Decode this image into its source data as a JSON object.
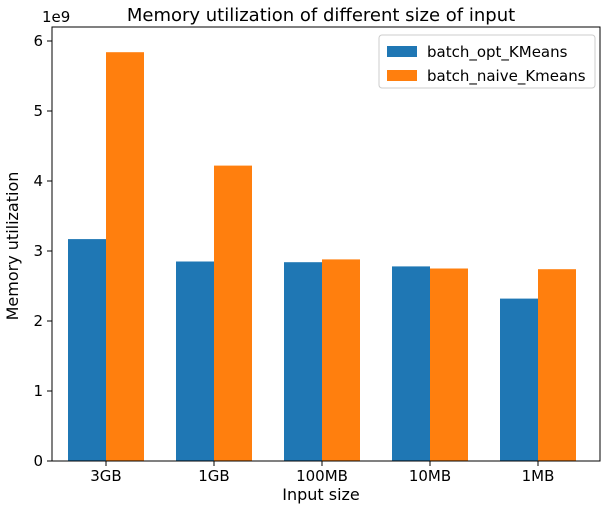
{
  "chart_data": {
    "type": "bar",
    "title": "Memory utilization of different size of input",
    "xlabel": "Input size",
    "ylabel": "Memory utilization",
    "y_multiplier_label": "1e9",
    "y_multiplier": 1000000000,
    "categories": [
      "3GB",
      "1GB",
      "100MB",
      "10MB",
      "1MB"
    ],
    "series": [
      {
        "name": "batch_opt_KMeans",
        "color": "#1f77b4",
        "values": [
          3.17,
          2.85,
          2.84,
          2.78,
          2.32
        ]
      },
      {
        "name": "batch_naive_Kmeans",
        "color": "#ff7f0e",
        "values": [
          5.84,
          4.22,
          2.88,
          2.75,
          2.74
        ]
      }
    ],
    "ylim": [
      0,
      6.2
    ],
    "yticks": [
      0,
      1,
      2,
      3,
      4,
      5,
      6
    ],
    "grid": false,
    "legend_position": "top-right"
  }
}
